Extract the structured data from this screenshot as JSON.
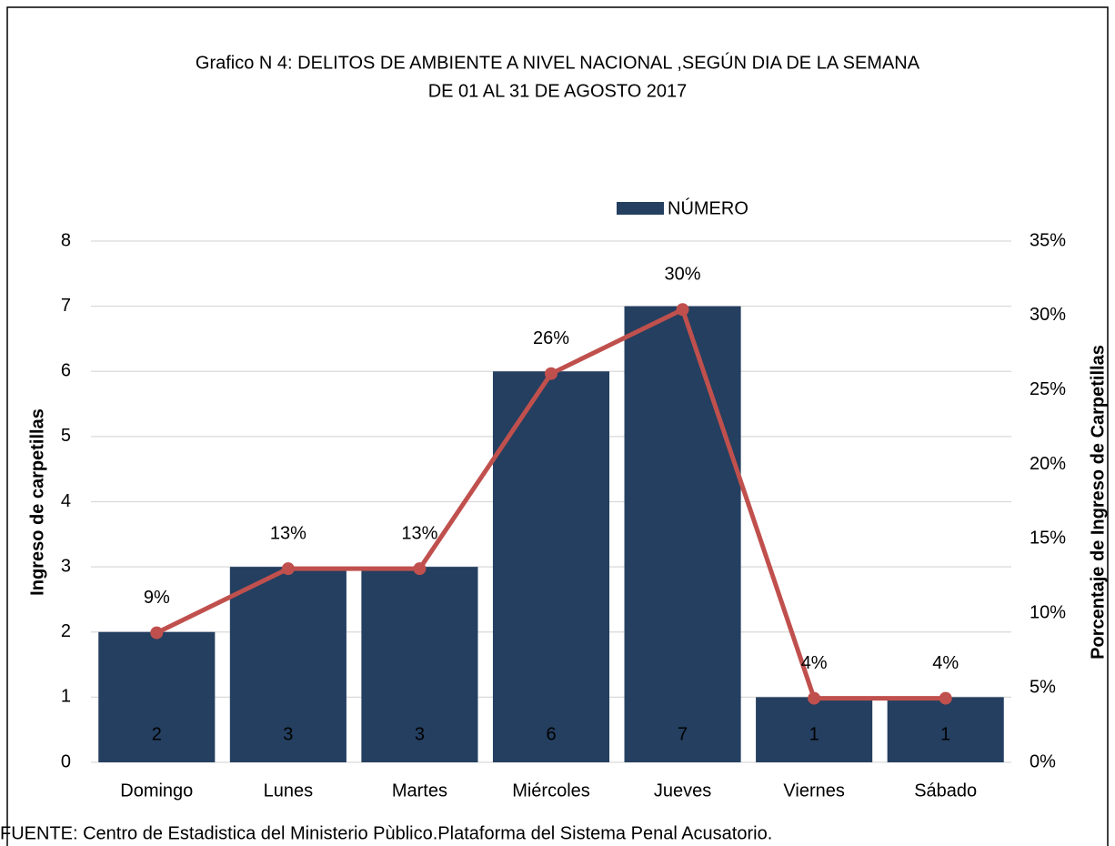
{
  "chart_data": {
    "type": "bar",
    "title": "Grafico N 4: DELITOS DE AMBIENTE A NIVEL NACIONAL ,SEGÚN DIA DE LA SEMANA",
    "subtitle": "DE 01 AL 31 DE AGOSTO 2017",
    "y_label": "Ingreso de carpetillas",
    "y2_label": "Porcentaje de Ingreso de Carpetillas",
    "source": "FUENTE: Centro de Estadistica del Ministerio Pùblico.Plataforma del Sistema Penal Acusatorio.",
    "categories": [
      "Domingo",
      "Lunes",
      "Martes",
      "Miércoles",
      "Jueves",
      "Viernes",
      "Sábado"
    ],
    "series": [
      {
        "name": "NÚMERO",
        "type": "bar",
        "color": "#243f60",
        "values": [
          2,
          3,
          3,
          6,
          7,
          1,
          1
        ]
      },
      {
        "type": "line",
        "axis": "y2",
        "color": "#c0504d",
        "values": [
          8.7,
          13.0,
          13.0,
          26.1,
          30.4,
          4.3,
          4.3
        ],
        "value_labels": [
          "9%",
          "13%",
          "13%",
          "26%",
          "30%",
          "4%",
          "4%"
        ]
      }
    ],
    "ylim": [
      0,
      8
    ],
    "yticks": [
      0,
      1,
      2,
      3,
      4,
      5,
      6,
      7,
      8
    ],
    "y2lim": [
      0,
      35
    ],
    "y2ticks": [
      {
        "value": 0,
        "label": "0%"
      },
      {
        "value": 5,
        "label": "5%"
      },
      {
        "value": 10,
        "label": "10%"
      },
      {
        "value": 15,
        "label": "15%"
      },
      {
        "value": 20,
        "label": "20%"
      },
      {
        "value": 25,
        "label": "25%"
      },
      {
        "value": 30,
        "label": "30%"
      },
      {
        "value": 35,
        "label": "35%"
      }
    ],
    "grid": true,
    "legend": "top"
  }
}
